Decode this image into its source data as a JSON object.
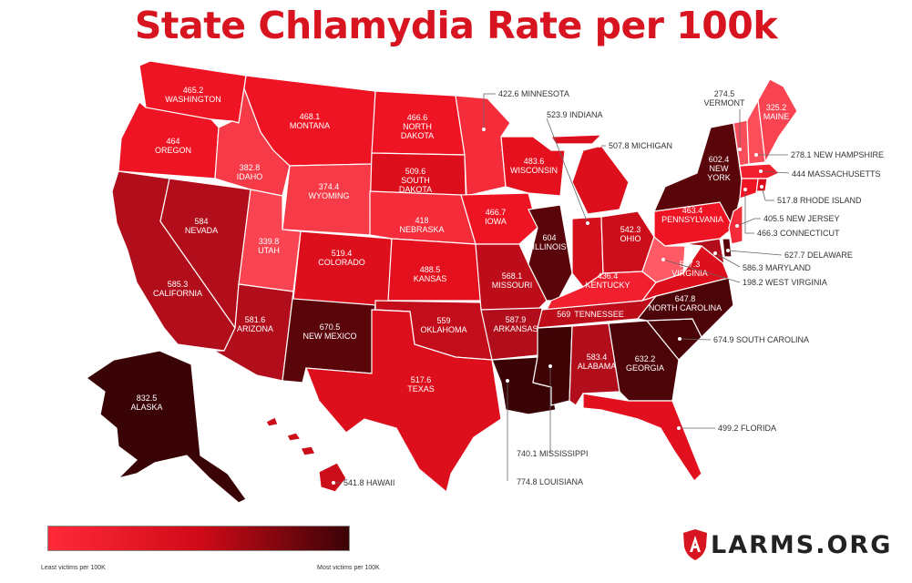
{
  "title": "State Chlamydia Rate per 100k",
  "legend": {
    "min_label": "Least victims per 100K",
    "max_label": "Most victims per 100K",
    "scale_colors": [
      "#ff2a3a",
      "#d10a18",
      "#3a0306"
    ]
  },
  "brand": {
    "text": "LARMS.ORG",
    "mark_letter": "A"
  },
  "states": {
    "WA": {
      "name": "WASHINGTON",
      "rate": "465.2",
      "color": "#ef1423"
    },
    "OR": {
      "name": "OREGON",
      "rate": "464",
      "color": "#ef1423"
    },
    "CA": {
      "name": "CALIFORNIA",
      "rate": "585.3",
      "color": "#b20d1a"
    },
    "NV": {
      "name": "NEVADA",
      "rate": "584",
      "color": "#b20d1a"
    },
    "ID": {
      "name": "IDAHO",
      "rate": "382.8",
      "color": "#f73a48"
    },
    "MT": {
      "name": "MONTANA",
      "rate": "468.1",
      "color": "#ef1423"
    },
    "WY": {
      "name": "WYOMING",
      "rate": "374.4",
      "color": "#f73a48"
    },
    "UT": {
      "name": "UTAH",
      "rate": "339.8",
      "color": "#fa4452"
    },
    "AZ": {
      "name": "ARIZONA",
      "rate": "581.6",
      "color": "#b20d1a"
    },
    "NM": {
      "name": "NEW MEXICO",
      "rate": "670.5",
      "color": "#5a0509"
    },
    "CO": {
      "name": "COLORADO",
      "rate": "519.4",
      "color": "#dd0f1c"
    },
    "ND": {
      "name": "NORTH DAKOTA",
      "rate": "466.6",
      "color": "#ef1423"
    },
    "SD": {
      "name": "SOUTH DAKOTA",
      "rate": "509.6",
      "color": "#dd0f1c"
    },
    "NE": {
      "name": "NEBRASKA",
      "rate": "418",
      "color": "#f52c3a"
    },
    "KS": {
      "name": "KANSAS",
      "rate": "488.5",
      "color": "#e5101e"
    },
    "OK": {
      "name": "OKLAHOMA",
      "rate": "559",
      "color": "#c40d1a"
    },
    "TX": {
      "name": "TEXAS",
      "rate": "517.6",
      "color": "#dd0f1c"
    },
    "MN": {
      "name": "MINNESOTA",
      "rate": "422.6",
      "color": "#f52c3a"
    },
    "IA": {
      "name": "IOWA",
      "rate": "466.7",
      "color": "#ef1423"
    },
    "MO": {
      "name": "MISSOURI",
      "rate": "568.1",
      "color": "#bd0d1a"
    },
    "AR": {
      "name": "ARKANSAS",
      "rate": "587.9",
      "color": "#b20d1a"
    },
    "LA": {
      "name": "LOUISIANA",
      "rate": "774.8",
      "color": "#3a0306"
    },
    "WI": {
      "name": "WISCONSIN",
      "rate": "483.6",
      "color": "#e5101e"
    },
    "IL": {
      "name": "ILLINOIS",
      "rate": "604",
      "color": "#5a0509"
    },
    "MI": {
      "name": "MICHIGAN",
      "rate": "507.8",
      "color": "#dd0f1c"
    },
    "IN": {
      "name": "INDIANA",
      "rate": "523.9",
      "color": "#d50f1c"
    },
    "OH": {
      "name": "OHIO",
      "rate": "542.3",
      "color": "#cc0e1b"
    },
    "KY": {
      "name": "KENTUCKY",
      "rate": "436.4",
      "color": "#f21f2e"
    },
    "TN": {
      "name": "TENNESSEE",
      "rate": "569",
      "color": "#bd0d1a"
    },
    "MS": {
      "name": "MISSISSIPPI",
      "rate": "740.1",
      "color": "#3f0306"
    },
    "AL": {
      "name": "ALABAMA",
      "rate": "583.4",
      "color": "#b20d1a"
    },
    "GA": {
      "name": "GEORGIA",
      "rate": "632.2",
      "color": "#4d0408"
    },
    "FL": {
      "name": "FLORIDA",
      "rate": "499.2",
      "color": "#e2101e"
    },
    "SC": {
      "name": "SOUTH CAROLINA",
      "rate": "674.9",
      "color": "#4a0407"
    },
    "NC": {
      "name": "NORTH CAROLINA",
      "rate": "647.8",
      "color": "#4d0408"
    },
    "VA": {
      "name": "VIRGINIA",
      "rate": "507.3",
      "color": "#dd0f1c"
    },
    "WV": {
      "name": "WEST VIRGINIA",
      "rate": "198.2",
      "color": "#ff5a66"
    },
    "PA": {
      "name": "PENNSYLVANIA",
      "rate": "463.4",
      "color": "#ef1423"
    },
    "NY": {
      "name": "NEW YORK",
      "rate": "602.4",
      "color": "#5a0509"
    },
    "VT": {
      "name": "VERMONT",
      "rate": "274.5",
      "color": "#fc4d5a"
    },
    "NH": {
      "name": "NEW HAMPSHIRE",
      "rate": "278.1",
      "color": "#fc4d5a"
    },
    "ME": {
      "name": "MAINE",
      "rate": "325.2",
      "color": "#fa4452"
    },
    "MA": {
      "name": "MASSACHUSETTS",
      "rate": "444",
      "color": "#f21f2e"
    },
    "RI": {
      "name": "RHODE ISLAND",
      "rate": "517.8",
      "color": "#dd0f1c"
    },
    "CT": {
      "name": "CONNECTICUT",
      "rate": "466.3",
      "color": "#ef1423"
    },
    "NJ": {
      "name": "NEW JERSEY",
      "rate": "405.5",
      "color": "#f52c3a"
    },
    "DE": {
      "name": "DELAWARE",
      "rate": "627.7",
      "color": "#5a0509"
    },
    "MD": {
      "name": "MARYLAND",
      "rate": "586.3",
      "color": "#b20d1a"
    },
    "AK": {
      "name": "ALASKA",
      "rate": "832.5",
      "color": "#3a0306"
    },
    "HI": {
      "name": "HAWAII",
      "rate": "541.8",
      "color": "#cc0e1b"
    }
  },
  "callouts": {
    "MN": "422.6 MINNESOTA",
    "IN": "523.9 INDIANA",
    "MI": "507.8 MICHIGAN",
    "NH": "278.1 NEW HAMPSHIRE",
    "MA": "444 MASSACHUSETTS",
    "RI": "517.8 RHODE ISLAND",
    "NJ": "405.5 NEW JERSEY",
    "CT": "466.3 CONNECTICUT",
    "DE": "627.7 DELAWARE",
    "MD": "586.3 MARYLAND",
    "WV": "198.2 WEST VIRGINIA",
    "SC": "674.9 SOUTH CAROLINA",
    "FL": "499.2 FLORIDA",
    "MS": "740.1 MISSISSIPPI",
    "LA": "774.8 LOUISIANA",
    "HI": "541.8 HAWAII"
  }
}
